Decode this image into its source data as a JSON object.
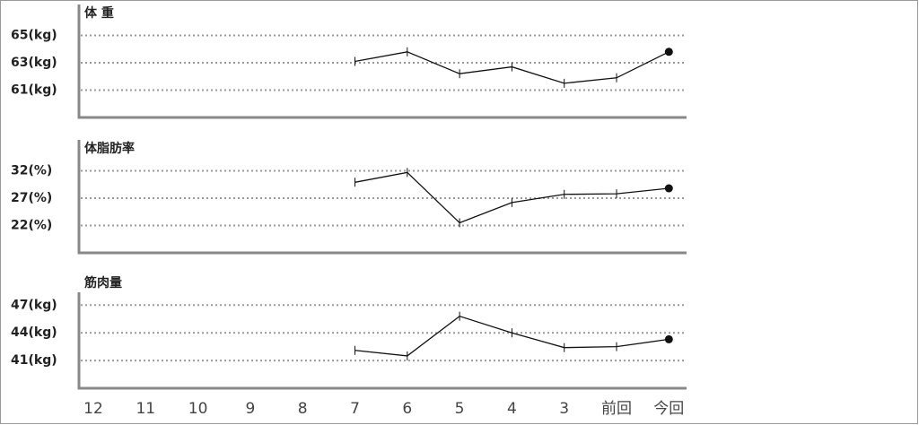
{
  "chart_data": [
    {
      "type": "line",
      "title": "体 重",
      "values": [
        null,
        null,
        null,
        null,
        null,
        63.1,
        63.8,
        62.2,
        62.7,
        61.5,
        61.9,
        63.8
      ],
      "ylim": [
        59,
        67
      ],
      "yticks": [
        {
          "value": 61,
          "label": "61(kg)"
        },
        {
          "value": 63,
          "label": "63(kg)"
        },
        {
          "value": 65,
          "label": "65(kg)"
        }
      ],
      "grid": true,
      "color": "#111111"
    },
    {
      "type": "line",
      "title": "体脂肪率",
      "values": [
        null,
        null,
        null,
        null,
        null,
        29.9,
        31.7,
        22.5,
        26.2,
        27.7,
        27.8,
        28.8
      ],
      "ylim": [
        17,
        37
      ],
      "yticks": [
        {
          "value": 22,
          "label": "22(%)"
        },
        {
          "value": 27,
          "label": "27(%)"
        },
        {
          "value": 32,
          "label": "32(%)"
        }
      ],
      "grid": true,
      "color": "#111111"
    },
    {
      "type": "line",
      "title": "筋肉量",
      "categories": [
        "12",
        "11",
        "10",
        "9",
        "8",
        "7",
        "6",
        "5",
        "4",
        "3",
        "前回",
        "今回"
      ],
      "values": [
        null,
        null,
        null,
        null,
        null,
        42.1,
        41.5,
        45.8,
        44.0,
        42.4,
        42.5,
        43.3
      ],
      "ylim": [
        38,
        48
      ],
      "yticks": [
        {
          "value": 41,
          "label": "41(kg)"
        },
        {
          "value": 44,
          "label": "44(kg)"
        },
        {
          "value": 47,
          "label": "47(kg)"
        }
      ],
      "grid": true,
      "color": "#111111"
    }
  ]
}
